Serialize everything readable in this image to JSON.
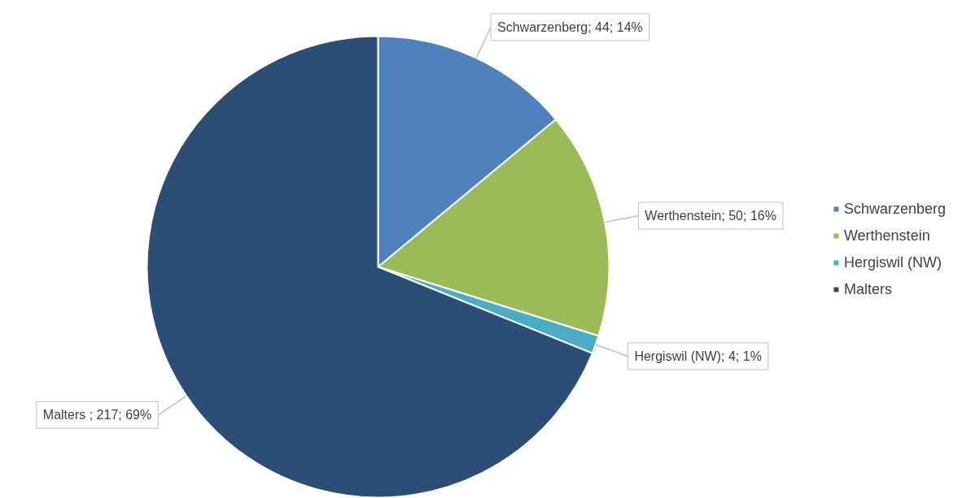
{
  "chart_data": {
    "type": "pie",
    "categories": [
      "Schwarzenberg",
      "Werthenstein",
      "Hergiswil (NW)",
      "Malters"
    ],
    "values": [
      44,
      50,
      4,
      217
    ],
    "colors": [
      "#4f81bd",
      "#9bbb59",
      "#4bacc6",
      "#2c4d75"
    ],
    "value_labels": [
      "Schwarzenberg; 44; 14%",
      "Werthenstein; 50; 16%",
      "Hergiswil (NW); 4; 1%",
      "Malters ; 217; 69%"
    ],
    "legend": "right"
  }
}
